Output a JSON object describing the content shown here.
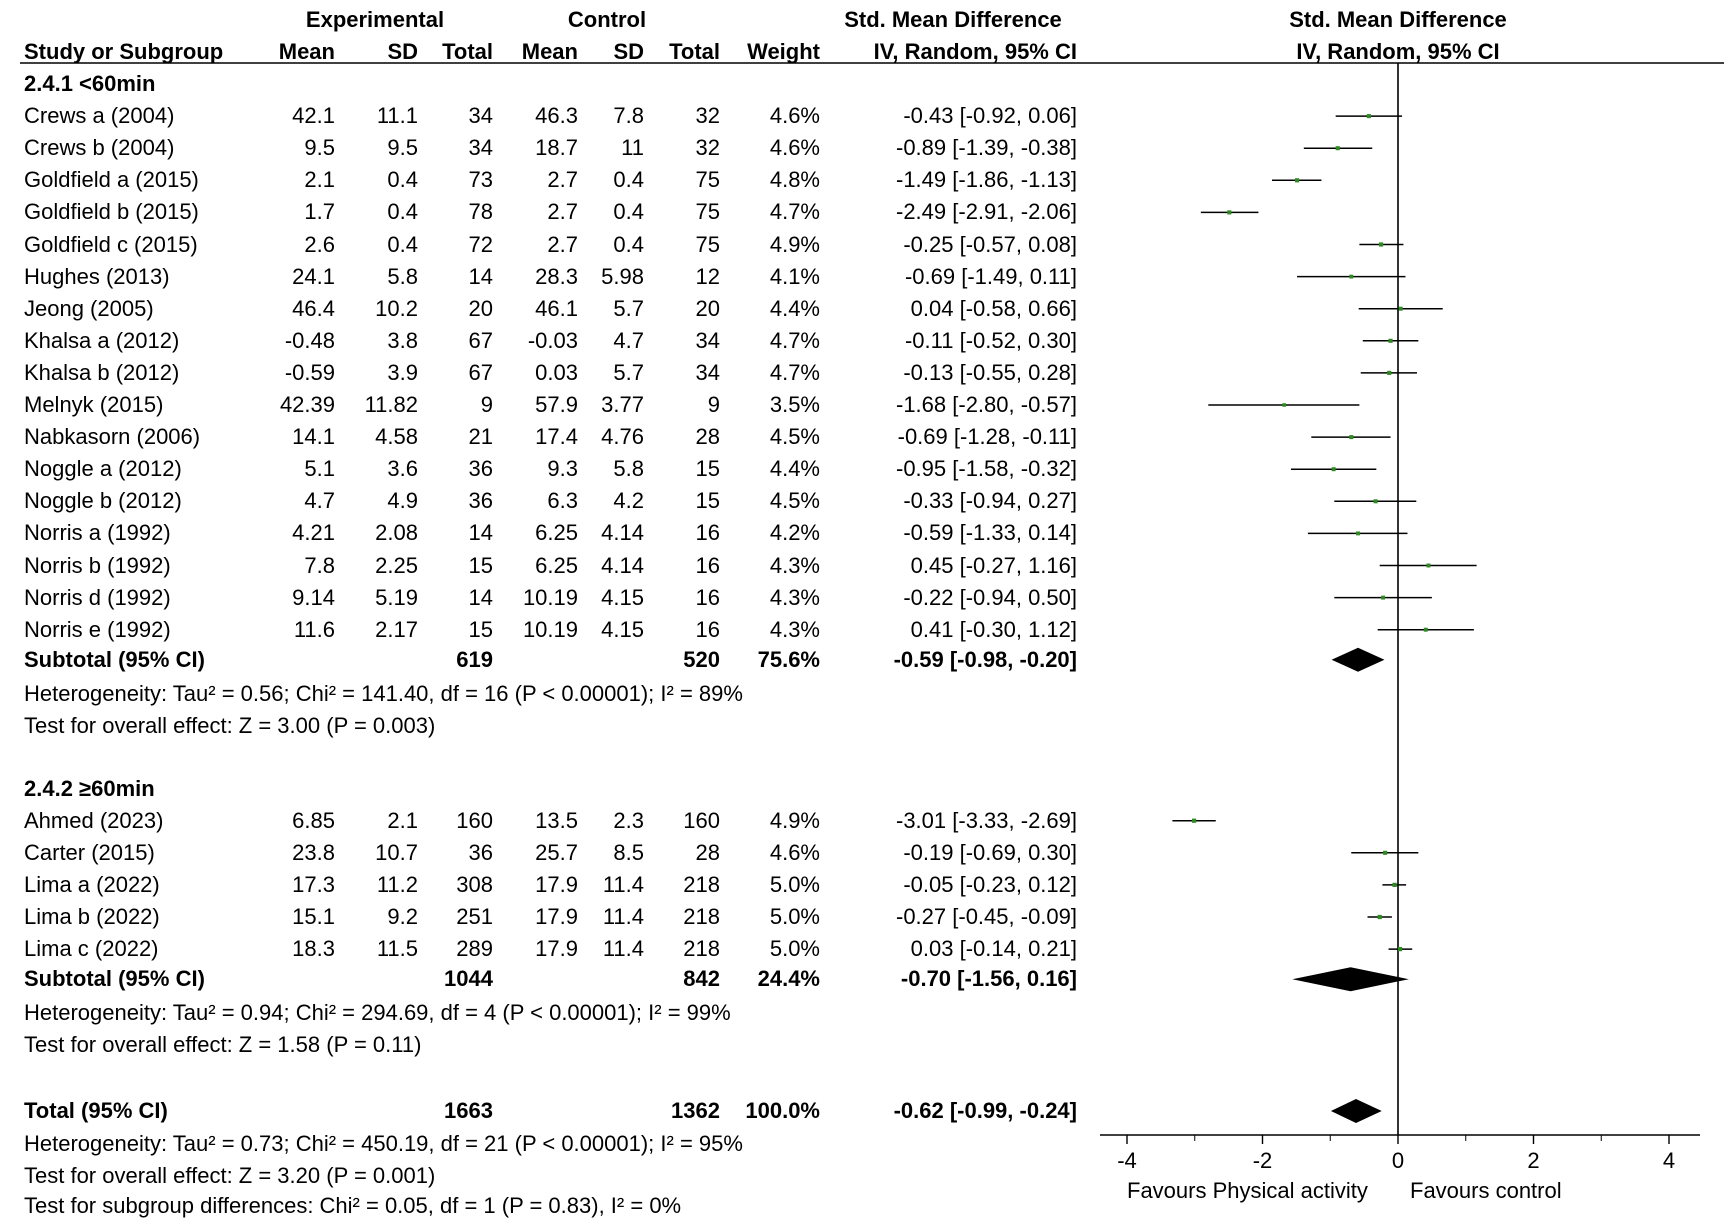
{
  "headers": {
    "group_experimental": "Experimental",
    "group_control": "Control",
    "effect_title_left": "Std. Mean Difference",
    "effect_title_right": "Std. Mean Difference",
    "study_col": "Study or Subgroup",
    "mean_e": "Mean",
    "sd_e": "SD",
    "total_e": "Total",
    "mean_c": "Mean",
    "sd_c": "SD",
    "total_c": "Total",
    "weight": "Weight",
    "method_left": "IV, Random, 95% CI",
    "method_right": "IV, Random, 95% CI"
  },
  "subgroups": [
    {
      "title": "2.4.1 <60min",
      "studies": [
        {
          "study": "Crews a (2004)",
          "mean_e": "42.1",
          "sd_e": "11.1",
          "total_e": "34",
          "mean_c": "46.3",
          "sd_c": "7.8",
          "total_c": "32",
          "weight": "4.6%",
          "ci": "-0.43 [-0.92, 0.06]"
        },
        {
          "study": "Crews b  (2004)",
          "mean_e": "9.5",
          "sd_e": "9.5",
          "total_e": "34",
          "mean_c": "18.7",
          "sd_c": "11",
          "total_c": "32",
          "weight": "4.6%",
          "ci": "-0.89 [-1.39, -0.38]"
        },
        {
          "study": "Goldfield a (2015)",
          "mean_e": "2.1",
          "sd_e": "0.4",
          "total_e": "73",
          "mean_c": "2.7",
          "sd_c": "0.4",
          "total_c": "75",
          "weight": "4.8%",
          "ci": "-1.49 [-1.86, -1.13]"
        },
        {
          "study": "Goldfield b (2015)",
          "mean_e": "1.7",
          "sd_e": "0.4",
          "total_e": "78",
          "mean_c": "2.7",
          "sd_c": "0.4",
          "total_c": "75",
          "weight": "4.7%",
          "ci": "-2.49 [-2.91, -2.06]"
        },
        {
          "study": "Goldfield c (2015)",
          "mean_e": "2.6",
          "sd_e": "0.4",
          "total_e": "72",
          "mean_c": "2.7",
          "sd_c": "0.4",
          "total_c": "75",
          "weight": "4.9%",
          "ci": "-0.25 [-0.57, 0.08]"
        },
        {
          "study": "Hughes (2013)",
          "mean_e": "24.1",
          "sd_e": "5.8",
          "total_e": "14",
          "mean_c": "28.3",
          "sd_c": "5.98",
          "total_c": "12",
          "weight": "4.1%",
          "ci": "-0.69 [-1.49, 0.11]"
        },
        {
          "study": "Jeong (2005)",
          "mean_e": "46.4",
          "sd_e": "10.2",
          "total_e": "20",
          "mean_c": "46.1",
          "sd_c": "5.7",
          "total_c": "20",
          "weight": "4.4%",
          "ci": "0.04 [-0.58, 0.66]"
        },
        {
          "study": "Khalsa a (2012)",
          "mean_e": "-0.48",
          "sd_e": "3.8",
          "total_e": "67",
          "mean_c": "-0.03",
          "sd_c": "4.7",
          "total_c": "34",
          "weight": "4.7%",
          "ci": "-0.11 [-0.52, 0.30]"
        },
        {
          "study": "Khalsa b (2012)",
          "mean_e": "-0.59",
          "sd_e": "3.9",
          "total_e": "67",
          "mean_c": "0.03",
          "sd_c": "5.7",
          "total_c": "34",
          "weight": "4.7%",
          "ci": "-0.13 [-0.55, 0.28]"
        },
        {
          "study": "Melnyk (2015)",
          "mean_e": "42.39",
          "sd_e": "11.82",
          "total_e": "9",
          "mean_c": "57.9",
          "sd_c": "3.77",
          "total_c": "9",
          "weight": "3.5%",
          "ci": "-1.68 [-2.80, -0.57]"
        },
        {
          "study": "Nabkasorn (2006)",
          "mean_e": "14.1",
          "sd_e": "4.58",
          "total_e": "21",
          "mean_c": "17.4",
          "sd_c": "4.76",
          "total_c": "28",
          "weight": "4.5%",
          "ci": "-0.69 [-1.28, -0.11]"
        },
        {
          "study": "Noggle a (2012)",
          "mean_e": "5.1",
          "sd_e": "3.6",
          "total_e": "36",
          "mean_c": "9.3",
          "sd_c": "5.8",
          "total_c": "15",
          "weight": "4.4%",
          "ci": "-0.95 [-1.58, -0.32]"
        },
        {
          "study": "Noggle b (2012)",
          "mean_e": "4.7",
          "sd_e": "4.9",
          "total_e": "36",
          "mean_c": "6.3",
          "sd_c": "4.2",
          "total_c": "15",
          "weight": "4.5%",
          "ci": "-0.33 [-0.94, 0.27]"
        },
        {
          "study": "Norris a (1992)",
          "mean_e": "4.21",
          "sd_e": "2.08",
          "total_e": "14",
          "mean_c": "6.25",
          "sd_c": "4.14",
          "total_c": "16",
          "weight": "4.2%",
          "ci": "-0.59 [-1.33, 0.14]"
        },
        {
          "study": "Norris b (1992)",
          "mean_e": "7.8",
          "sd_e": "2.25",
          "total_e": "15",
          "mean_c": "6.25",
          "sd_c": "4.14",
          "total_c": "16",
          "weight": "4.3%",
          "ci": "0.45 [-0.27, 1.16]"
        },
        {
          "study": "Norris d (1992)",
          "mean_e": "9.14",
          "sd_e": "5.19",
          "total_e": "14",
          "mean_c": "10.19",
          "sd_c": "4.15",
          "total_c": "16",
          "weight": "4.3%",
          "ci": "-0.22 [-0.94, 0.50]"
        },
        {
          "study": "Norris e (1992)",
          "mean_e": "11.6",
          "sd_e": "2.17",
          "total_e": "15",
          "mean_c": "10.19",
          "sd_c": "4.15",
          "total_c": "16",
          "weight": "4.3%",
          "ci": "0.41 [-0.30, 1.12]"
        }
      ],
      "subtotal": {
        "label": "Subtotal (95% CI)",
        "total_e": "619",
        "total_c": "520",
        "weight": "75.6%",
        "ci": "-0.59 [-0.98, -0.20]"
      },
      "heterogeneity": "Heterogeneity: Tau² = 0.56; Chi² = 141.40, df = 16 (P < 0.00001); I² = 89%",
      "overall": "Test for overall effect: Z = 3.00 (P = 0.003)"
    },
    {
      "title": "2.4.2 ≥60min",
      "studies": [
        {
          "study": "Ahmed (2023)",
          "mean_e": "6.85",
          "sd_e": "2.1",
          "total_e": "160",
          "mean_c": "13.5",
          "sd_c": "2.3",
          "total_c": "160",
          "weight": "4.9%",
          "ci": "-3.01 [-3.33, -2.69]"
        },
        {
          "study": "Carter (2015)",
          "mean_e": "23.8",
          "sd_e": "10.7",
          "total_e": "36",
          "mean_c": "25.7",
          "sd_c": "8.5",
          "total_c": "28",
          "weight": "4.6%",
          "ci": "-0.19 [-0.69, 0.30]"
        },
        {
          "study": "Lima a (2022)",
          "mean_e": "17.3",
          "sd_e": "11.2",
          "total_e": "308",
          "mean_c": "17.9",
          "sd_c": "11.4",
          "total_c": "218",
          "weight": "5.0%",
          "ci": "-0.05 [-0.23, 0.12]"
        },
        {
          "study": "Lima b (2022)",
          "mean_e": "15.1",
          "sd_e": "9.2",
          "total_e": "251",
          "mean_c": "17.9",
          "sd_c": "11.4",
          "total_c": "218",
          "weight": "5.0%",
          "ci": "-0.27 [-0.45, -0.09]"
        },
        {
          "study": "Lima c (2022)",
          "mean_e": "18.3",
          "sd_e": "11.5",
          "total_e": "289",
          "mean_c": "17.9",
          "sd_c": "11.4",
          "total_c": "218",
          "weight": "5.0%",
          "ci": "0.03 [-0.14, 0.21]"
        }
      ],
      "subtotal": {
        "label": "Subtotal (95% CI)",
        "total_e": "1044",
        "total_c": "842",
        "weight": "24.4%",
        "ci": "-0.70 [-1.56, 0.16]"
      },
      "heterogeneity": "Heterogeneity: Tau² = 0.94; Chi² = 294.69, df = 4 (P < 0.00001); I² = 99%",
      "overall": "Test for overall effect: Z = 1.58 (P = 0.11)"
    }
  ],
  "total": {
    "label": "Total (95% CI)",
    "total_e": "1663",
    "total_c": "1362",
    "weight": "100.0%",
    "ci": "-0.62 [-0.99, -0.24]",
    "heterogeneity": "Heterogeneity: Tau² = 0.73; Chi² = 450.19, df = 21 (P < 0.00001); I² = 95%",
    "overall": "Test for overall effect: Z = 3.20 (P = 0.001)",
    "subgroup_diff": "Test for subgroup differences: Chi² = 0.05, df = 1 (P = 0.83), I² = 0%"
  },
  "favours": {
    "left": "Favours Physical activity",
    "right": "Favours control"
  },
  "colors": {
    "point": "#2e8b22",
    "line": "#000000",
    "diamond": "#000000"
  },
  "chart_data": {
    "type": "forest",
    "xlim": [
      -4,
      4
    ],
    "ticks": [
      "-4",
      "-2",
      "0",
      "2",
      "4"
    ],
    "null_line": 0,
    "studies": [
      {
        "name": "Crews a (2004)",
        "est": -0.43,
        "lo": -0.92,
        "hi": 0.06,
        "weight": 4.6
      },
      {
        "name": "Crews b  (2004)",
        "est": -0.89,
        "lo": -1.39,
        "hi": -0.38,
        "weight": 4.6
      },
      {
        "name": "Goldfield a (2015)",
        "est": -1.49,
        "lo": -1.86,
        "hi": -1.13,
        "weight": 4.8
      },
      {
        "name": "Goldfield b (2015)",
        "est": -2.49,
        "lo": -2.91,
        "hi": -2.06,
        "weight": 4.7
      },
      {
        "name": "Goldfield c (2015)",
        "est": -0.25,
        "lo": -0.57,
        "hi": 0.08,
        "weight": 4.9
      },
      {
        "name": "Hughes (2013)",
        "est": -0.69,
        "lo": -1.49,
        "hi": 0.11,
        "weight": 4.1
      },
      {
        "name": "Jeong (2005)",
        "est": 0.04,
        "lo": -0.58,
        "hi": 0.66,
        "weight": 4.4
      },
      {
        "name": "Khalsa a (2012)",
        "est": -0.11,
        "lo": -0.52,
        "hi": 0.3,
        "weight": 4.7
      },
      {
        "name": "Khalsa b (2012)",
        "est": -0.13,
        "lo": -0.55,
        "hi": 0.28,
        "weight": 4.7
      },
      {
        "name": "Melnyk (2015)",
        "est": -1.68,
        "lo": -2.8,
        "hi": -0.57,
        "weight": 3.5
      },
      {
        "name": "Nabkasorn (2006)",
        "est": -0.69,
        "lo": -1.28,
        "hi": -0.11,
        "weight": 4.5
      },
      {
        "name": "Noggle a (2012)",
        "est": -0.95,
        "lo": -1.58,
        "hi": -0.32,
        "weight": 4.4
      },
      {
        "name": "Noggle b (2012)",
        "est": -0.33,
        "lo": -0.94,
        "hi": 0.27,
        "weight": 4.5
      },
      {
        "name": "Norris a (1992)",
        "est": -0.59,
        "lo": -1.33,
        "hi": 0.14,
        "weight": 4.2
      },
      {
        "name": "Norris b (1992)",
        "est": 0.45,
        "lo": -0.27,
        "hi": 1.16,
        "weight": 4.3
      },
      {
        "name": "Norris d (1992)",
        "est": -0.22,
        "lo": -0.94,
        "hi": 0.5,
        "weight": 4.3
      },
      {
        "name": "Norris e (1992)",
        "est": 0.41,
        "lo": -0.3,
        "hi": 1.12,
        "weight": 4.3
      },
      {
        "name": "Ahmed (2023)",
        "est": -3.01,
        "lo": -3.33,
        "hi": -2.69,
        "weight": 4.9
      },
      {
        "name": "Carter (2015)",
        "est": -0.19,
        "lo": -0.69,
        "hi": 0.3,
        "weight": 4.6
      },
      {
        "name": "Lima a (2022)",
        "est": -0.05,
        "lo": -0.23,
        "hi": 0.12,
        "weight": 5.0
      },
      {
        "name": "Lima b (2022)",
        "est": -0.27,
        "lo": -0.45,
        "hi": -0.09,
        "weight": 5.0
      },
      {
        "name": "Lima c (2022)",
        "est": 0.03,
        "lo": -0.14,
        "hi": 0.21,
        "weight": 5.0
      }
    ],
    "pooled": [
      {
        "name": "Subtotal 2.4.1",
        "est": -0.59,
        "lo": -0.98,
        "hi": -0.2
      },
      {
        "name": "Subtotal 2.4.2",
        "est": -0.7,
        "lo": -1.56,
        "hi": 0.16
      },
      {
        "name": "Total",
        "est": -0.62,
        "lo": -0.99,
        "hi": -0.24
      }
    ]
  }
}
